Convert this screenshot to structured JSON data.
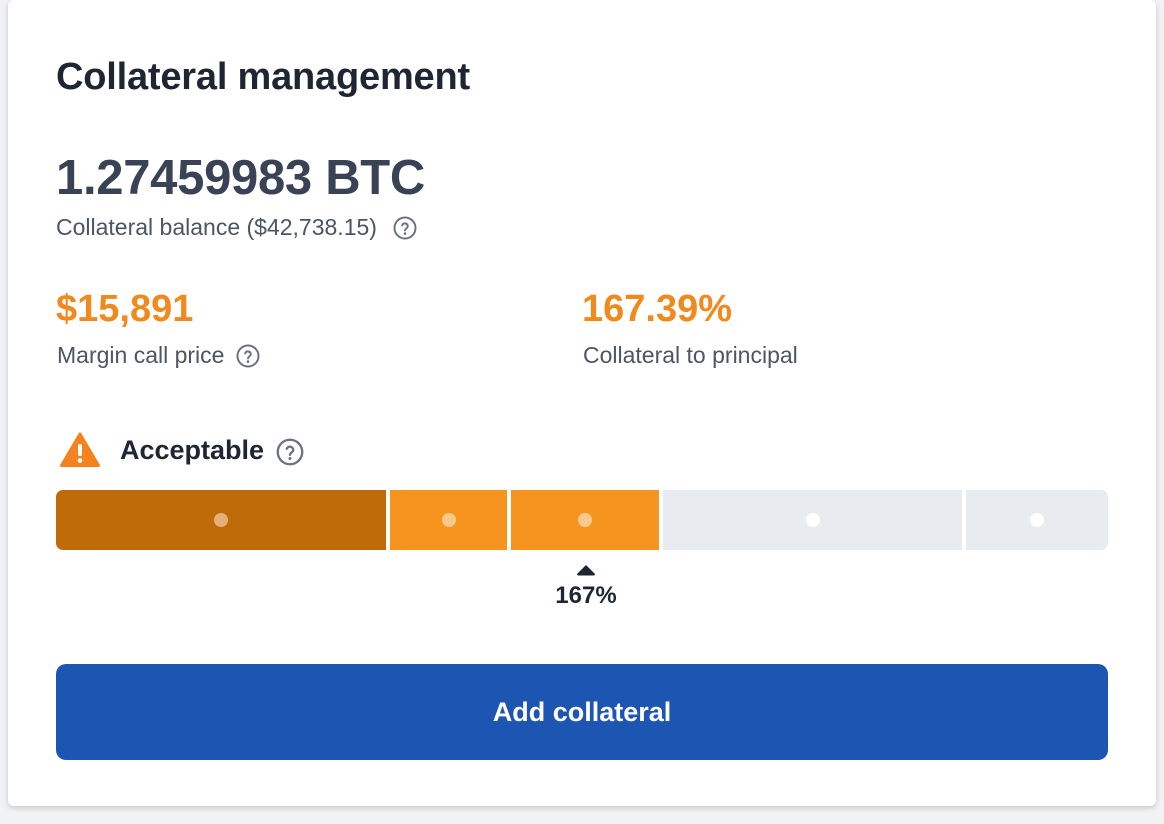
{
  "card": {
    "title": "Collateral management"
  },
  "balance": {
    "amount": "1.27459983 BTC",
    "label": "Collateral balance ($42,738.15)"
  },
  "stats": {
    "margin_call": {
      "value": "$15,891",
      "label": "Margin call price"
    },
    "collateral_ratio": {
      "value": "167.39%",
      "label": "Collateral to principal"
    }
  },
  "status": {
    "text": "Acceptable",
    "icon": "warning-triangle-icon",
    "color": "#f5821f"
  },
  "health_bar": {
    "segments": [
      {
        "state": "filled-dark",
        "color": "#c06b0a",
        "dot_color": "#e6b078"
      },
      {
        "state": "filled",
        "color": "#f5941f",
        "dot_color": "#f9c98c"
      },
      {
        "state": "filled",
        "color": "#f5941f",
        "dot_color": "#f9c98c"
      },
      {
        "state": "empty",
        "color": "#e8ebf0",
        "dot_color": "#ffffff"
      },
      {
        "state": "empty",
        "color": "#e8ebf0",
        "dot_color": "#ffffff"
      }
    ],
    "marker_label": "167%"
  },
  "actions": {
    "add_collateral": "Add collateral"
  },
  "colors": {
    "accent_orange": "#f08a1f",
    "button_blue": "#1d55b3",
    "title_text": "#1e2633"
  }
}
